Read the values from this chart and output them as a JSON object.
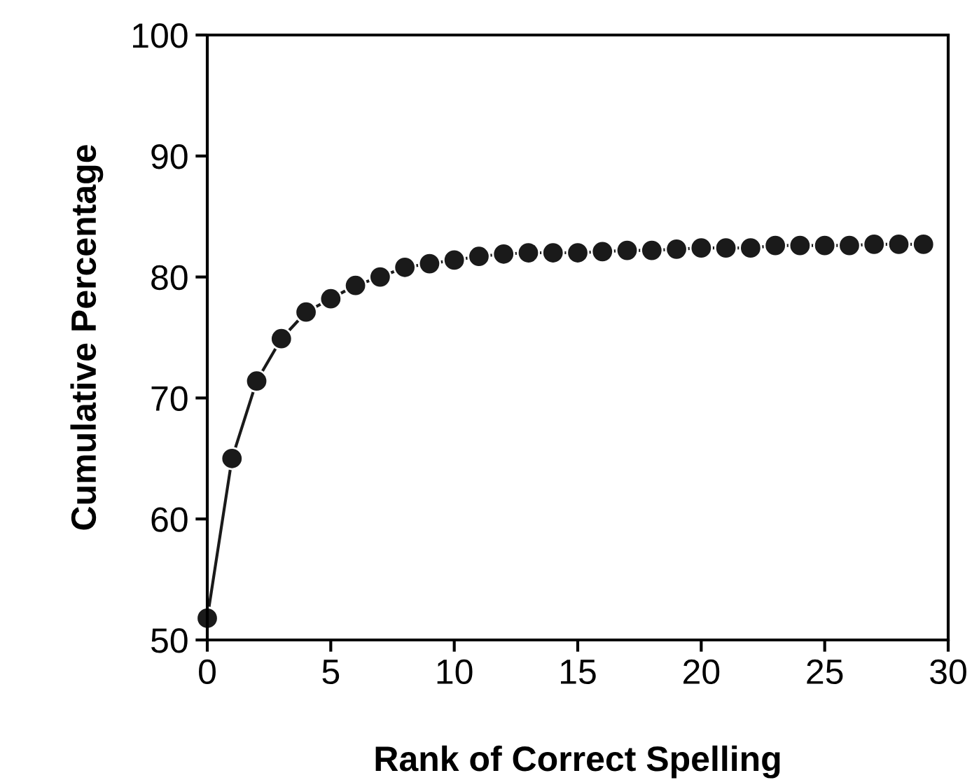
{
  "chart_data": {
    "type": "line",
    "xlabel": "Rank of Correct Spelling",
    "ylabel": "Cumulative Percentage",
    "x": [
      0,
      1,
      2,
      3,
      4,
      5,
      6,
      7,
      8,
      9,
      10,
      11,
      12,
      13,
      14,
      15,
      16,
      17,
      18,
      19,
      20,
      21,
      22,
      23,
      24,
      25,
      26,
      27,
      28,
      29
    ],
    "series": [
      {
        "color": "#1a1a1a",
        "values": [
          51.8,
          65.0,
          71.4,
          74.9,
          77.1,
          78.2,
          79.3,
          80.0,
          80.8,
          81.1,
          81.4,
          81.7,
          81.9,
          82.0,
          82.0,
          82.0,
          82.1,
          82.2,
          82.2,
          82.3,
          82.4,
          82.4,
          82.4,
          82.6,
          82.6,
          82.6,
          82.6,
          82.7,
          82.7,
          82.7
        ]
      }
    ],
    "xlim": [
      0,
      30
    ],
    "ylim": [
      50,
      100
    ],
    "xticks": [
      0,
      5,
      10,
      15,
      20,
      25,
      30
    ],
    "yticks": [
      50,
      60,
      70,
      80,
      90,
      100
    ],
    "marker": "circle",
    "line_style": "solid",
    "grid": false,
    "legend": false
  }
}
